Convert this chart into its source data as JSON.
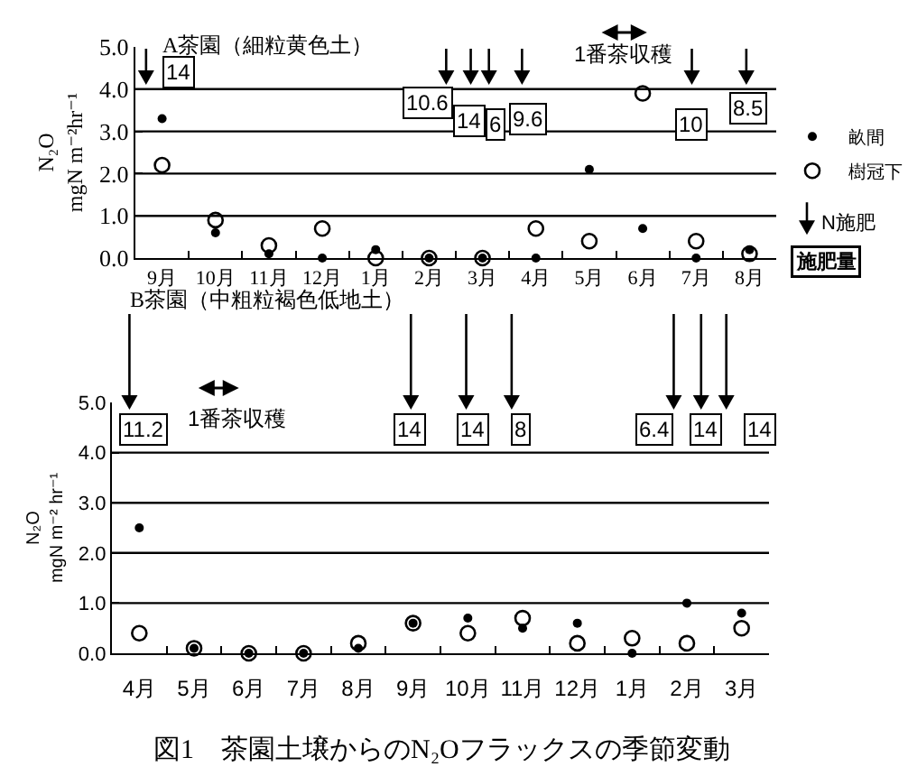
{
  "chart_data": [
    {
      "type": "scatter",
      "title": "A茶園（細粒黄色土）",
      "ylabel": "N₂O\nmgN m⁻²hr⁻¹",
      "categories": [
        "9月",
        "10月",
        "11月",
        "12月",
        "1月",
        "2月",
        "3月",
        "4月",
        "5月",
        "6月",
        "7月",
        "8月"
      ],
      "series": [
        {
          "name": "畝間",
          "color": "#000000",
          "values": [
            3.3,
            0.6,
            0.1,
            0.0,
            0.2,
            0.0,
            0.0,
            0.0,
            2.1,
            0.7,
            0.0,
            0.2
          ]
        },
        {
          "name": "樹冠下",
          "color": "#000000",
          "values": [
            2.2,
            0.9,
            0.3,
            0.7,
            0.0,
            0.0,
            0.0,
            0.7,
            0.4,
            3.9,
            0.4,
            0.1
          ]
        }
      ],
      "ylim": [
        0,
        5
      ],
      "yticks": [
        {
          "value": 0,
          "label": "0.0"
        },
        {
          "value": 1,
          "label": "1.0"
        },
        {
          "value": 2,
          "label": "2.0"
        },
        {
          "value": 3,
          "label": "3.0"
        },
        {
          "value": 4,
          "label": "4.0"
        },
        {
          "value": 5,
          "label": "5.0"
        }
      ],
      "grid": "y",
      "legend": "right",
      "marker": "circle",
      "annotations": [
        "14",
        "10.6",
        "14",
        "6",
        "9.6",
        "10",
        "8.5",
        "1番茶収穫",
        "N施肥",
        "施肥量"
      ]
    },
    {
      "type": "scatter",
      "title": "B茶園（中粗粒褐色低地土）",
      "ylabel": "N₂O\nmgN m⁻² hr⁻¹",
      "categories": [
        "4月",
        "5月",
        "6月",
        "7月",
        "8月",
        "9月",
        "10月",
        "11月",
        "12月",
        "1月",
        "2月",
        "3月"
      ],
      "series": [
        {
          "color": "#000000",
          "values": [
            2.5,
            0.1,
            0.0,
            0.0,
            0.1,
            0.6,
            0.7,
            0.5,
            0.6,
            0.0,
            1.0,
            0.8
          ]
        },
        {
          "color": "#000000",
          "values": [
            0.4,
            0.1,
            0.0,
            0.0,
            0.2,
            0.6,
            0.4,
            0.7,
            0.2,
            0.3,
            0.2,
            0.5
          ]
        }
      ],
      "ylim": [
        0,
        5
      ],
      "yticks": [
        {
          "value": 0,
          "label": "0.0"
        },
        {
          "value": 1,
          "label": "1.0"
        },
        {
          "value": 2,
          "label": "2.0"
        },
        {
          "value": 3,
          "label": "3.0"
        },
        {
          "value": 4,
          "label": "4.0"
        },
        {
          "value": 5,
          "label": "5.0"
        }
      ],
      "grid": "y",
      "marker": "circle",
      "annotations": [
        "11.2",
        "14",
        "14",
        "8",
        "6.4",
        "14",
        "14",
        "1番茶収穫",
        "図1　茶園土壌からのN₂Oフラックスの季節変動"
      ]
    }
  ]
}
